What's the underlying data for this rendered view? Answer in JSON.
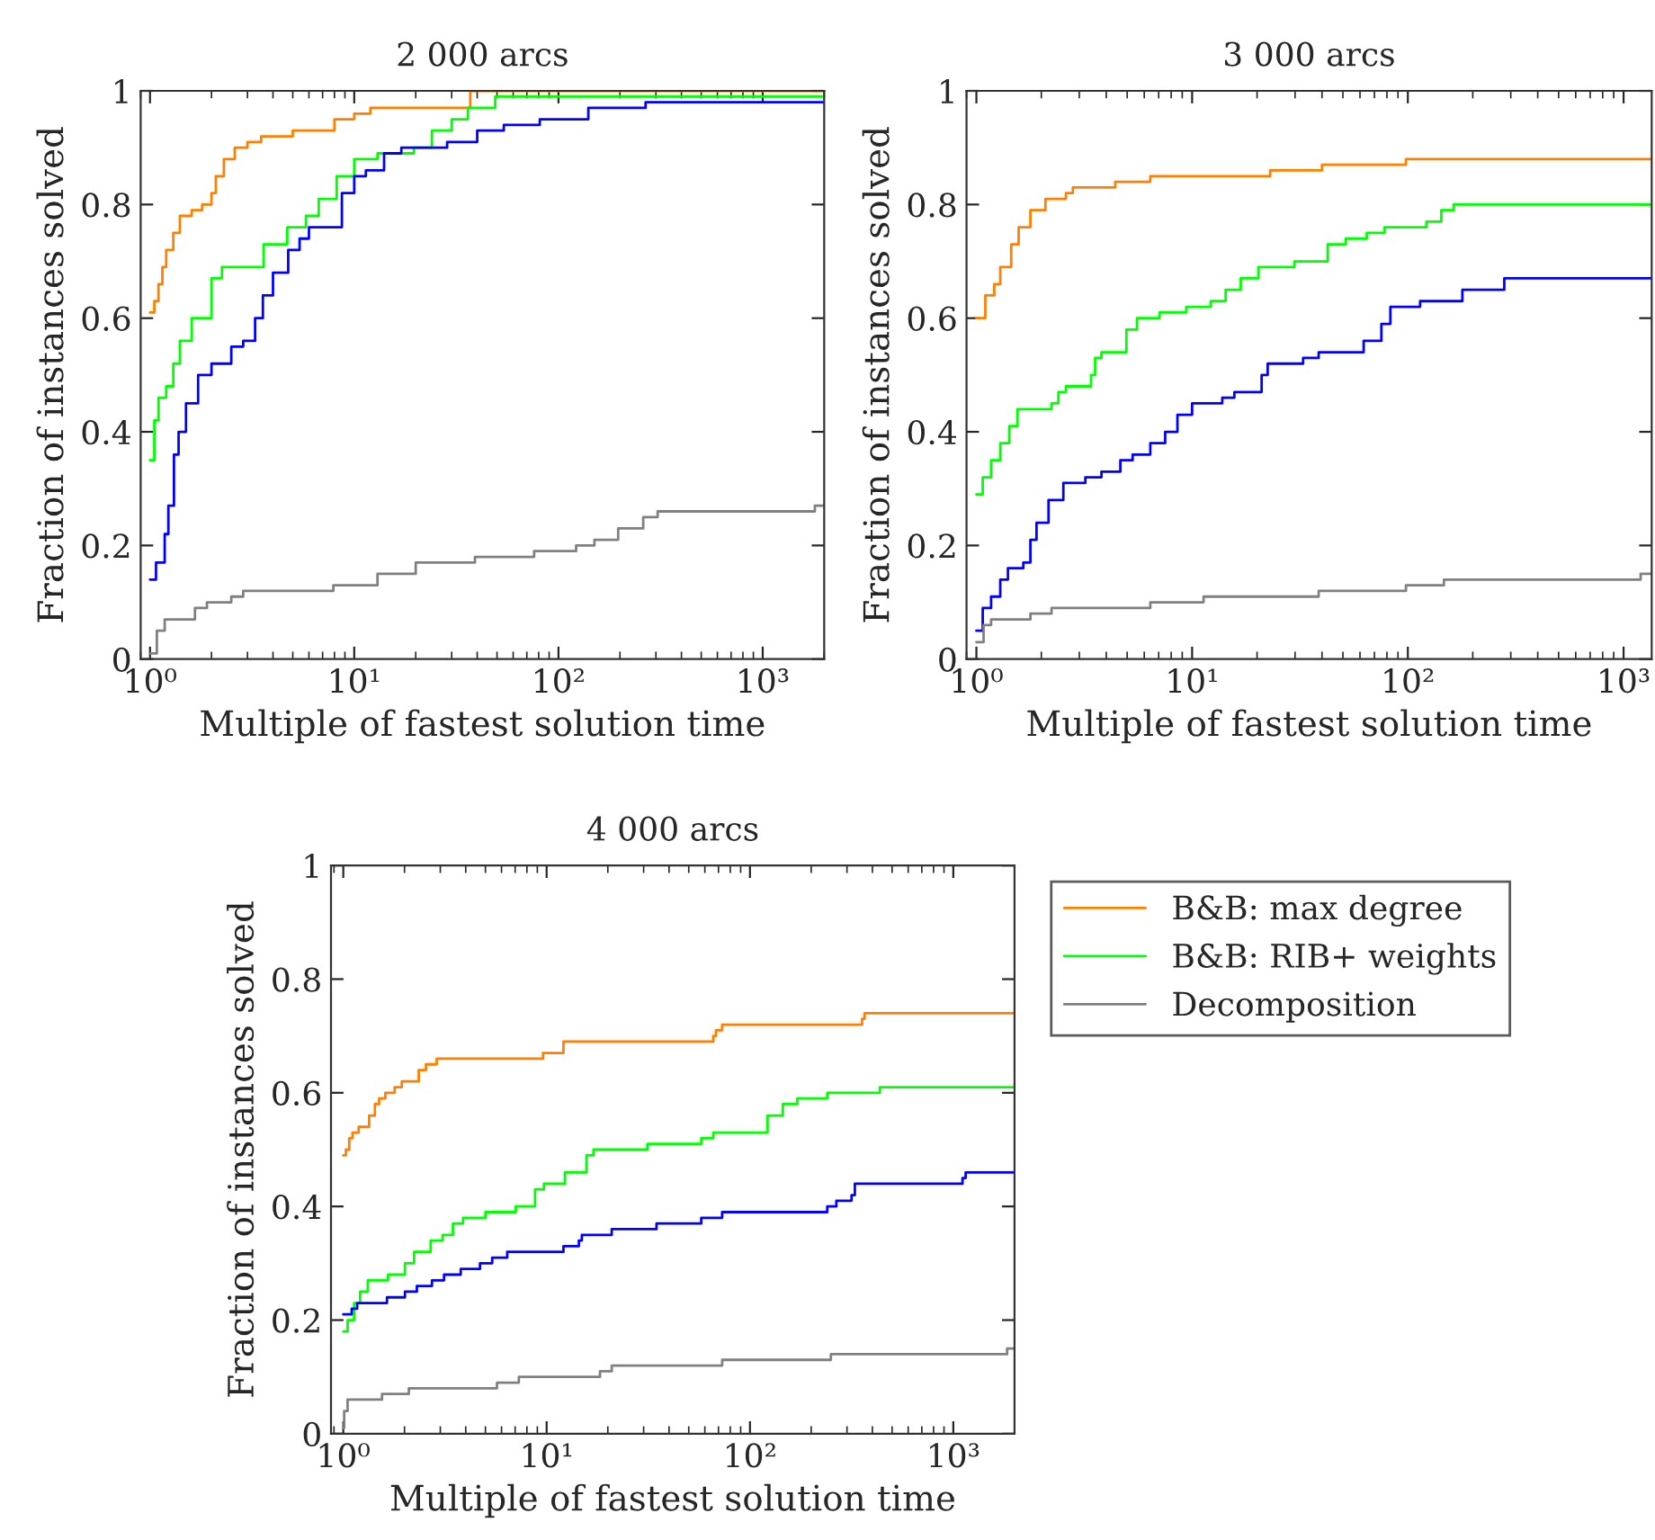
{
  "chart_data": [
    {
      "type": "step",
      "title": "2 000 arcs",
      "xlabel": "Multiple of fastest solution time",
      "ylabel": "Fraction of instances solved",
      "log": "x",
      "grid": false,
      "xlim": [
        0.9,
        2000
      ],
      "xticks": [
        {
          "value": 1,
          "label": "10⁰"
        },
        {
          "value": 10,
          "label": "10¹"
        },
        {
          "value": 100,
          "label": "10²"
        },
        {
          "value": 1000,
          "label": "10³"
        }
      ],
      "ylim": [
        0,
        1
      ],
      "yticks": [
        0,
        0.2,
        0.4,
        0.6,
        0.8,
        1
      ],
      "series": [
        {
          "color": "#ff7f00",
          "x": [
            1,
            1.05,
            1.1,
            1.15,
            1.2,
            1.3,
            1.4,
            1.6,
            1.8,
            2.0,
            2.1,
            2.3,
            2.6,
            3.0,
            3.5,
            5,
            8,
            10,
            12,
            37,
            2000
          ],
          "values": [
            0.61,
            0.63,
            0.66,
            0.69,
            0.72,
            0.75,
            0.78,
            0.79,
            0.8,
            0.82,
            0.85,
            0.88,
            0.9,
            0.91,
            0.92,
            0.93,
            0.95,
            0.96,
            0.97,
            1.0,
            1.0
          ]
        },
        {
          "color": "#00ff00",
          "x": [
            1,
            1.05,
            1.1,
            1.2,
            1.3,
            1.4,
            1.6,
            2.0,
            2.25,
            3.6,
            4.7,
            5.8,
            6.7,
            8.2,
            10,
            13,
            19.6,
            24,
            30,
            36,
            49,
            2000
          ],
          "values": [
            0.35,
            0.42,
            0.46,
            0.48,
            0.52,
            0.56,
            0.6,
            0.67,
            0.69,
            0.73,
            0.76,
            0.78,
            0.81,
            0.85,
            0.88,
            0.89,
            0.9,
            0.93,
            0.95,
            0.97,
            0.99,
            0.99
          ]
        },
        {
          "color": "#0000ff",
          "x": [
            1,
            1.07,
            1.18,
            1.23,
            1.31,
            1.38,
            1.5,
            1.72,
            2.0,
            2.5,
            2.86,
            3.27,
            3.57,
            4.0,
            4.75,
            5.4,
            6.0,
            8.7,
            10,
            11.4,
            14,
            17,
            28.5,
            40,
            54,
            81,
            140,
            267,
            2000
          ],
          "values": [
            0.14,
            0.17,
            0.22,
            0.27,
            0.36,
            0.4,
            0.45,
            0.5,
            0.52,
            0.55,
            0.56,
            0.6,
            0.64,
            0.68,
            0.72,
            0.74,
            0.76,
            0.82,
            0.85,
            0.86,
            0.89,
            0.9,
            0.91,
            0.93,
            0.94,
            0.95,
            0.97,
            0.98,
            0.98
          ]
        },
        {
          "color": "#808080",
          "x": [
            1,
            1.08,
            1.18,
            1.66,
            1.9,
            2.5,
            2.86,
            7.9,
            13,
            20,
            39,
            76,
            122,
            150,
            196,
            260,
            306,
            1800,
            2000
          ],
          "values": [
            0.01,
            0.05,
            0.07,
            0.09,
            0.1,
            0.11,
            0.12,
            0.13,
            0.15,
            0.17,
            0.18,
            0.19,
            0.2,
            0.21,
            0.23,
            0.25,
            0.26,
            0.27,
            0.27
          ]
        }
      ]
    },
    {
      "type": "step",
      "title": "3 000 arcs",
      "xlabel": "Multiple of fastest solution time",
      "ylabel": "Fraction of instances solved",
      "log": "x",
      "grid": false,
      "xlim": [
        0.9,
        1350
      ],
      "xticks": [
        {
          "value": 1,
          "label": "10⁰"
        },
        {
          "value": 10,
          "label": "10¹"
        },
        {
          "value": 100,
          "label": "10²"
        },
        {
          "value": 1000,
          "label": "10³"
        }
      ],
      "ylim": [
        0,
        1
      ],
      "yticks": [
        0,
        0.2,
        0.4,
        0.6,
        0.8,
        1
      ],
      "series": [
        {
          "color": "#ff7f00",
          "x": [
            1,
            1.1,
            1.21,
            1.29,
            1.45,
            1.57,
            1.78,
            2.09,
            2.6,
            2.8,
            4.4,
            6.4,
            23,
            40,
            98,
            1350
          ],
          "values": [
            0.6,
            0.64,
            0.66,
            0.69,
            0.73,
            0.76,
            0.79,
            0.81,
            0.82,
            0.83,
            0.84,
            0.85,
            0.86,
            0.87,
            0.88,
            0.88
          ]
        },
        {
          "color": "#00ff00",
          "x": [
            1,
            1.07,
            1.17,
            1.29,
            1.42,
            1.55,
            2.23,
            2.4,
            2.6,
            3.4,
            3.55,
            3.8,
            4.96,
            5.55,
            7.06,
            9.4,
            12.2,
            14.3,
            16.8,
            20.3,
            29.8,
            42.5,
            51.5,
            64.5,
            78,
            122,
            143,
            163,
            1350
          ],
          "values": [
            0.29,
            0.32,
            0.35,
            0.38,
            0.41,
            0.44,
            0.45,
            0.47,
            0.48,
            0.5,
            0.53,
            0.54,
            0.58,
            0.6,
            0.61,
            0.62,
            0.63,
            0.65,
            0.67,
            0.69,
            0.7,
            0.73,
            0.74,
            0.75,
            0.76,
            0.77,
            0.79,
            0.8,
            0.8
          ]
        },
        {
          "color": "#0000ff",
          "x": [
            1,
            1.07,
            1.17,
            1.29,
            1.4,
            1.65,
            1.78,
            1.9,
            2.16,
            2.53,
            3.2,
            3.8,
            4.65,
            5.3,
            6.4,
            7.5,
            8.55,
            10,
            13.8,
            15.7,
            21,
            22.4,
            32.7,
            38.6,
            62.4,
            75.4,
            83,
            114,
            179,
            280,
            1350
          ],
          "values": [
            0.05,
            0.09,
            0.11,
            0.14,
            0.16,
            0.17,
            0.21,
            0.24,
            0.28,
            0.31,
            0.32,
            0.33,
            0.35,
            0.36,
            0.38,
            0.4,
            0.43,
            0.45,
            0.46,
            0.47,
            0.5,
            0.52,
            0.53,
            0.54,
            0.56,
            0.59,
            0.62,
            0.63,
            0.65,
            0.67,
            0.67
          ]
        },
        {
          "color": "#808080",
          "x": [
            1,
            1.08,
            1.17,
            1.78,
            2.23,
            6.4,
            11.3,
            38.6,
            98,
            147,
            1200,
            1350
          ],
          "values": [
            0.03,
            0.06,
            0.07,
            0.08,
            0.09,
            0.1,
            0.11,
            0.12,
            0.13,
            0.14,
            0.15,
            0.15
          ]
        }
      ]
    },
    {
      "type": "step",
      "title": "4 000 arcs",
      "xlabel": "Multiple of fastest solution time",
      "ylabel": "Fraction of instances solved",
      "log": "x",
      "grid": false,
      "legend": "right",
      "xlim": [
        0.87,
        2000
      ],
      "xticks": [
        {
          "value": 1,
          "label": "10⁰"
        },
        {
          "value": 10,
          "label": "10¹"
        },
        {
          "value": 100,
          "label": "10²"
        },
        {
          "value": 1000,
          "label": "10³"
        }
      ],
      "ylim": [
        0,
        1
      ],
      "yticks": [
        0,
        0.2,
        0.4,
        0.6,
        0.8,
        1
      ],
      "series": [
        {
          "name": "B&B: max degree",
          "color": "#ff7f00",
          "x": [
            1,
            1.03,
            1.07,
            1.11,
            1.19,
            1.34,
            1.43,
            1.5,
            1.61,
            1.79,
            1.94,
            2.35,
            2.55,
            2.88,
            9.6,
            12.1,
            66,
            68,
            73,
            356,
            366,
            2000
          ],
          "values": [
            0.49,
            0.5,
            0.52,
            0.53,
            0.54,
            0.56,
            0.58,
            0.59,
            0.6,
            0.61,
            0.62,
            0.64,
            0.65,
            0.66,
            0.67,
            0.69,
            0.7,
            0.71,
            0.72,
            0.73,
            0.74,
            0.74
          ]
        },
        {
          "name": "B&B: RIB+ weights",
          "color": "#00ff00",
          "x": [
            1,
            1.05,
            1.13,
            1.21,
            1.32,
            1.66,
            2.01,
            2.23,
            2.69,
            3.08,
            3.46,
            3.88,
            5.0,
            7.05,
            8.77,
            9.7,
            12.3,
            15.7,
            17,
            31.3,
            57.6,
            66,
            122,
            145,
            171,
            240,
            435,
            2000
          ],
          "values": [
            0.18,
            0.2,
            0.23,
            0.25,
            0.27,
            0.28,
            0.3,
            0.32,
            0.34,
            0.35,
            0.37,
            0.38,
            0.39,
            0.4,
            0.43,
            0.44,
            0.46,
            0.49,
            0.5,
            0.51,
            0.52,
            0.53,
            0.56,
            0.58,
            0.59,
            0.6,
            0.61,
            0.61
          ]
        },
        {
          "color": "#0000ff",
          "x": [
            1,
            1.1,
            1.17,
            1.64,
            2.01,
            2.3,
            2.73,
            3.13,
            3.78,
            4.7,
            5.4,
            6.4,
            12.1,
            14.4,
            14.9,
            20.9,
            34.7,
            57.6,
            73,
            240,
            266,
            316,
            328,
            1110,
            1150,
            2000
          ],
          "values": [
            0.21,
            0.22,
            0.23,
            0.24,
            0.25,
            0.26,
            0.27,
            0.28,
            0.29,
            0.3,
            0.31,
            0.32,
            0.33,
            0.34,
            0.35,
            0.36,
            0.37,
            0.38,
            0.39,
            0.4,
            0.41,
            0.42,
            0.44,
            0.45,
            0.46,
            0.46
          ]
        },
        {
          "name": "Decomposition",
          "color": "#808080",
          "x": [
            1,
            1.01,
            1.05,
            1.55,
            2.1,
            5.7,
            7.3,
            18.3,
            20.9,
            73,
            250,
            1840,
            2000
          ],
          "values": [
            0.01,
            0.04,
            0.06,
            0.07,
            0.08,
            0.09,
            0.1,
            0.11,
            0.12,
            0.13,
            0.14,
            0.15,
            0.15
          ]
        }
      ]
    }
  ]
}
